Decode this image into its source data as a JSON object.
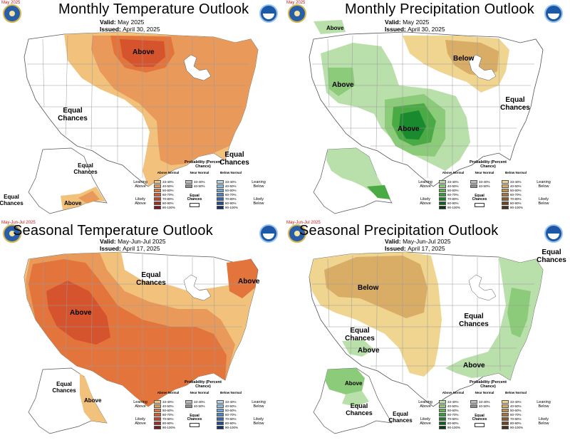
{
  "panels": [
    {
      "date_tag": "May 2025",
      "title": "Monthly Temperature Outlook",
      "valid_label": "Valid:",
      "valid_value": "May 2025",
      "issued_label": "Issued:",
      "issued_value": "April 30, 2025",
      "labels": [
        "Above",
        "Equal Chances",
        "Equal Chances",
        "Equal Chances",
        "Equal Chances",
        "Above"
      ]
    },
    {
      "date_tag": "May 2025",
      "title": "Monthly Precipitation Outlook",
      "valid_label": "Valid:",
      "valid_value": "May 2025",
      "issued_label": "Issued:",
      "issued_value": "April 30, 2025",
      "labels": [
        "Above",
        "Below",
        "Above",
        "Equal Chances",
        "Above"
      ]
    },
    {
      "date_tag": "May-Jun-Jul 2025",
      "title": "Seasonal Temperature Outlook",
      "valid_label": "Valid:",
      "valid_value": "May-Jun-Jul 2025",
      "issued_label": "Issued:",
      "issued_value": "April 17, 2025",
      "labels": [
        "Equal Chances",
        "Above",
        "Above",
        "Equal Chances",
        "Above"
      ]
    },
    {
      "date_tag": "May-Jun-Jul 2025",
      "title": "Seasonal Precipitation Outlook",
      "valid_label": "Valid:",
      "valid_value": "May-Jun-Jul 2025",
      "issued_label": "Issued:",
      "issued_value": "April 17, 2025",
      "labels": [
        "Equal Chances",
        "Below",
        "Equal Chances",
        "Equal Chances",
        "Above",
        "Above",
        "Above",
        "Equal Chances",
        "Equal Chances"
      ]
    }
  ],
  "legend_temp": {
    "title": "Probability (Percent Chance)",
    "above_head": "Above Normal",
    "near_head": "Near Normal",
    "below_head": "Below Normal",
    "ranges": [
      "33-40%",
      "40-50%",
      "50-60%",
      "60-70%",
      "70-80%",
      "80-90%",
      "90-100%"
    ],
    "near_ranges": [
      "33-40%",
      "40-50%"
    ],
    "leaning_above": "Leaning Above",
    "likely_above": "Likely Above",
    "leaning_below": "Leaning Below",
    "likely_below": "Likely Below",
    "equal_chances": "Equal Chances",
    "above_colors": [
      "#f3c27b",
      "#e89a52",
      "#e3773a",
      "#dc5a2a",
      "#c7402a",
      "#a52a22",
      "#7a1a18"
    ],
    "near_colors": [
      "#bcbcbc",
      "#8e8e8e"
    ],
    "below_colors": [
      "#b7d6ec",
      "#8dbde3",
      "#6ba4d8",
      "#4a86c6",
      "#3468ae",
      "#214e92",
      "#10336e"
    ]
  },
  "legend_prcp": {
    "title": "Probability (Percent Chance)",
    "above_head": "Above Normal",
    "near_head": "Near Normal",
    "below_head": "Below Normal",
    "ranges": [
      "33-40%",
      "40-50%",
      "50-60%",
      "60-70%",
      "70-80%",
      "80-90%",
      "90-100%"
    ],
    "near_ranges": [
      "33-40%",
      "40-50%"
    ],
    "leaning_above": "Leaning Above",
    "likely_above": "Likely Above",
    "leaning_below": "Leaning Below",
    "likely_below": "Likely Below",
    "equal_chances": "Equal Chances",
    "above_colors": [
      "#b8e0a8",
      "#8fcd7a",
      "#5db54e",
      "#33a032",
      "#1a7f28",
      "#105f1c",
      "#063d10"
    ],
    "near_colors": [
      "#bcbcbc",
      "#8e8e8e"
    ],
    "below_colors": [
      "#f0d58e",
      "#dcb064",
      "#c5924a",
      "#a8743a",
      "#8a5a2c",
      "#6e4420",
      "#4e2e14"
    ]
  },
  "colors": {
    "temp_lean_above": "#f2c27c",
    "temp_40_50": "#e9995a",
    "temp_50_60": "#e2743c",
    "temp_60_70": "#d5542d",
    "prcp_above_33": "#b9e0aa",
    "prcp_above_40": "#8ccb7a",
    "prcp_above_50": "#4aab45",
    "prcp_above_60": "#1a8a2e",
    "prcp_below_33": "#f0d590",
    "prcp_below_40": "#d9ad66",
    "state_line": "#9a9a9a",
    "outline": "#555555"
  }
}
